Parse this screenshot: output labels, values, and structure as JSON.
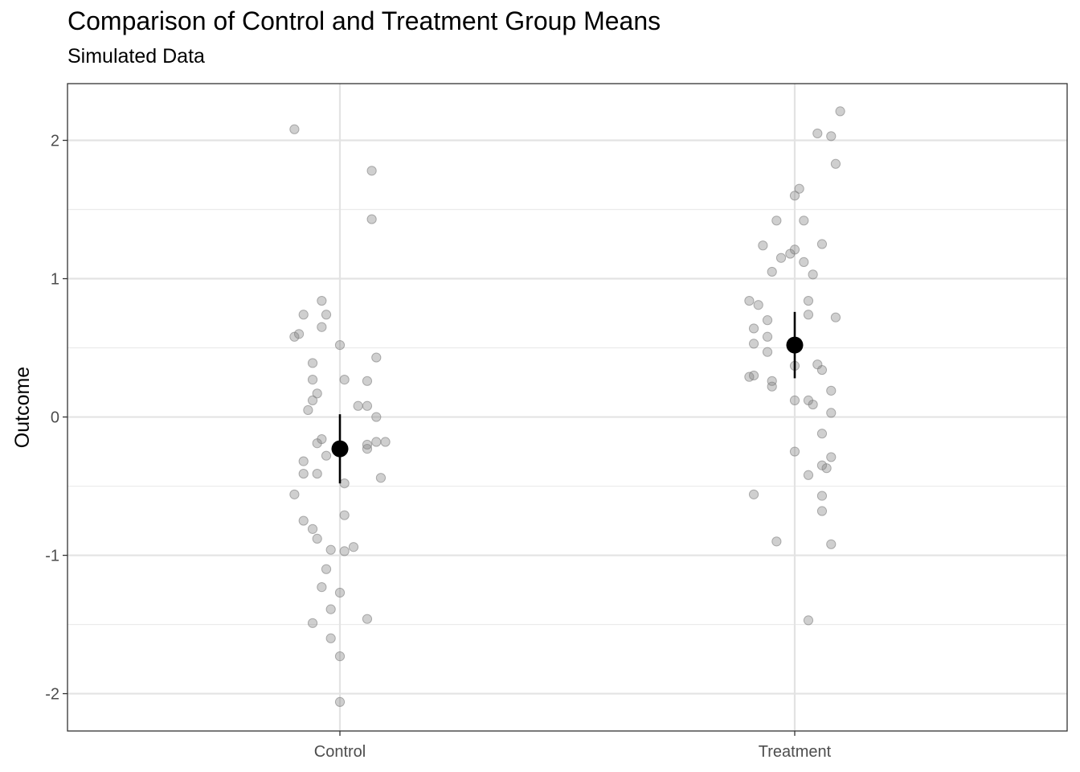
{
  "chart_data": {
    "type": "scatter",
    "title": "Comparison of Control and Treatment Group Means",
    "subtitle": "Simulated Data",
    "xlabel": "",
    "ylabel": "Outcome",
    "categories": [
      "Control",
      "Treatment"
    ],
    "ylim": [
      -2.27,
      2.41
    ],
    "y_ticks": [
      -2,
      -1,
      0,
      1,
      2
    ],
    "grid": true,
    "point_color": "#808080",
    "mean_color": "#000000",
    "means": [
      {
        "category": "Control",
        "mean": -0.23,
        "lower": -0.48,
        "upper": 0.02
      },
      {
        "category": "Treatment",
        "mean": 0.52,
        "lower": 0.28,
        "upper": 0.76
      }
    ],
    "points": [
      {
        "category": "Control",
        "jitter": -0.1,
        "y": 2.08
      },
      {
        "category": "Control",
        "jitter": 0.07,
        "y": 1.78
      },
      {
        "category": "Control",
        "jitter": 0.07,
        "y": 1.43
      },
      {
        "category": "Control",
        "jitter": -0.04,
        "y": 0.84
      },
      {
        "category": "Control",
        "jitter": -0.08,
        "y": 0.74
      },
      {
        "category": "Control",
        "jitter": -0.03,
        "y": 0.74
      },
      {
        "category": "Control",
        "jitter": -0.04,
        "y": 0.65
      },
      {
        "category": "Control",
        "jitter": -0.09,
        "y": 0.6
      },
      {
        "category": "Control",
        "jitter": -0.1,
        "y": 0.58
      },
      {
        "category": "Control",
        "jitter": 0.0,
        "y": 0.52
      },
      {
        "category": "Control",
        "jitter": 0.08,
        "y": 0.43
      },
      {
        "category": "Control",
        "jitter": -0.06,
        "y": 0.39
      },
      {
        "category": "Control",
        "jitter": -0.06,
        "y": 0.27
      },
      {
        "category": "Control",
        "jitter": 0.01,
        "y": 0.27
      },
      {
        "category": "Control",
        "jitter": 0.06,
        "y": 0.26
      },
      {
        "category": "Control",
        "jitter": -0.05,
        "y": 0.17
      },
      {
        "category": "Control",
        "jitter": -0.06,
        "y": 0.12
      },
      {
        "category": "Control",
        "jitter": 0.04,
        "y": 0.08
      },
      {
        "category": "Control",
        "jitter": 0.06,
        "y": 0.08
      },
      {
        "category": "Control",
        "jitter": -0.07,
        "y": 0.05
      },
      {
        "category": "Control",
        "jitter": 0.08,
        "y": 0.0
      },
      {
        "category": "Control",
        "jitter": -0.04,
        "y": -0.16
      },
      {
        "category": "Control",
        "jitter": 0.08,
        "y": -0.18
      },
      {
        "category": "Control",
        "jitter": 0.1,
        "y": -0.18
      },
      {
        "category": "Control",
        "jitter": -0.05,
        "y": -0.19
      },
      {
        "category": "Control",
        "jitter": 0.06,
        "y": -0.2
      },
      {
        "category": "Control",
        "jitter": 0.06,
        "y": -0.23
      },
      {
        "category": "Control",
        "jitter": -0.03,
        "y": -0.28
      },
      {
        "category": "Control",
        "jitter": -0.08,
        "y": -0.32
      },
      {
        "category": "Control",
        "jitter": -0.08,
        "y": -0.41
      },
      {
        "category": "Control",
        "jitter": -0.05,
        "y": -0.41
      },
      {
        "category": "Control",
        "jitter": 0.09,
        "y": -0.44
      },
      {
        "category": "Control",
        "jitter": 0.01,
        "y": -0.48
      },
      {
        "category": "Control",
        "jitter": -0.1,
        "y": -0.56
      },
      {
        "category": "Control",
        "jitter": 0.01,
        "y": -0.71
      },
      {
        "category": "Control",
        "jitter": -0.08,
        "y": -0.75
      },
      {
        "category": "Control",
        "jitter": -0.06,
        "y": -0.81
      },
      {
        "category": "Control",
        "jitter": -0.05,
        "y": -0.88
      },
      {
        "category": "Control",
        "jitter": 0.03,
        "y": -0.94
      },
      {
        "category": "Control",
        "jitter": -0.02,
        "y": -0.96
      },
      {
        "category": "Control",
        "jitter": 0.01,
        "y": -0.97
      },
      {
        "category": "Control",
        "jitter": -0.03,
        "y": -1.1
      },
      {
        "category": "Control",
        "jitter": -0.04,
        "y": -1.23
      },
      {
        "category": "Control",
        "jitter": 0.0,
        "y": -1.27
      },
      {
        "category": "Control",
        "jitter": -0.02,
        "y": -1.39
      },
      {
        "category": "Control",
        "jitter": 0.06,
        "y": -1.46
      },
      {
        "category": "Control",
        "jitter": -0.06,
        "y": -1.49
      },
      {
        "category": "Control",
        "jitter": -0.02,
        "y": -1.6
      },
      {
        "category": "Control",
        "jitter": 0.0,
        "y": -1.73
      },
      {
        "category": "Control",
        "jitter": 0.0,
        "y": -2.06
      },
      {
        "category": "Treatment",
        "jitter": 0.1,
        "y": 2.21
      },
      {
        "category": "Treatment",
        "jitter": 0.05,
        "y": 2.05
      },
      {
        "category": "Treatment",
        "jitter": 0.08,
        "y": 2.03
      },
      {
        "category": "Treatment",
        "jitter": 0.09,
        "y": 1.83
      },
      {
        "category": "Treatment",
        "jitter": 0.01,
        "y": 1.65
      },
      {
        "category": "Treatment",
        "jitter": 0.0,
        "y": 1.6
      },
      {
        "category": "Treatment",
        "jitter": -0.04,
        "y": 1.42
      },
      {
        "category": "Treatment",
        "jitter": 0.02,
        "y": 1.42
      },
      {
        "category": "Treatment",
        "jitter": -0.07,
        "y": 1.24
      },
      {
        "category": "Treatment",
        "jitter": 0.06,
        "y": 1.25
      },
      {
        "category": "Treatment",
        "jitter": 0.0,
        "y": 1.21
      },
      {
        "category": "Treatment",
        "jitter": -0.01,
        "y": 1.18
      },
      {
        "category": "Treatment",
        "jitter": -0.03,
        "y": 1.15
      },
      {
        "category": "Treatment",
        "jitter": 0.02,
        "y": 1.12
      },
      {
        "category": "Treatment",
        "jitter": -0.05,
        "y": 1.05
      },
      {
        "category": "Treatment",
        "jitter": 0.04,
        "y": 1.03
      },
      {
        "category": "Treatment",
        "jitter": -0.1,
        "y": 0.84
      },
      {
        "category": "Treatment",
        "jitter": 0.03,
        "y": 0.84
      },
      {
        "category": "Treatment",
        "jitter": -0.08,
        "y": 0.81
      },
      {
        "category": "Treatment",
        "jitter": 0.03,
        "y": 0.74
      },
      {
        "category": "Treatment",
        "jitter": 0.09,
        "y": 0.72
      },
      {
        "category": "Treatment",
        "jitter": -0.06,
        "y": 0.7
      },
      {
        "category": "Treatment",
        "jitter": -0.09,
        "y": 0.64
      },
      {
        "category": "Treatment",
        "jitter": -0.06,
        "y": 0.58
      },
      {
        "category": "Treatment",
        "jitter": -0.09,
        "y": 0.53
      },
      {
        "category": "Treatment",
        "jitter": -0.06,
        "y": 0.47
      },
      {
        "category": "Treatment",
        "jitter": 0.05,
        "y": 0.38
      },
      {
        "category": "Treatment",
        "jitter": 0.0,
        "y": 0.37
      },
      {
        "category": "Treatment",
        "jitter": 0.06,
        "y": 0.34
      },
      {
        "category": "Treatment",
        "jitter": -0.09,
        "y": 0.3
      },
      {
        "category": "Treatment",
        "jitter": -0.1,
        "y": 0.29
      },
      {
        "category": "Treatment",
        "jitter": -0.05,
        "y": 0.26
      },
      {
        "category": "Treatment",
        "jitter": -0.05,
        "y": 0.22
      },
      {
        "category": "Treatment",
        "jitter": 0.08,
        "y": 0.19
      },
      {
        "category": "Treatment",
        "jitter": 0.0,
        "y": 0.12
      },
      {
        "category": "Treatment",
        "jitter": 0.03,
        "y": 0.12
      },
      {
        "category": "Treatment",
        "jitter": 0.04,
        "y": 0.09
      },
      {
        "category": "Treatment",
        "jitter": 0.08,
        "y": 0.03
      },
      {
        "category": "Treatment",
        "jitter": 0.06,
        "y": -0.12
      },
      {
        "category": "Treatment",
        "jitter": 0.0,
        "y": -0.25
      },
      {
        "category": "Treatment",
        "jitter": 0.08,
        "y": -0.29
      },
      {
        "category": "Treatment",
        "jitter": 0.06,
        "y": -0.35
      },
      {
        "category": "Treatment",
        "jitter": 0.07,
        "y": -0.37
      },
      {
        "category": "Treatment",
        "jitter": 0.03,
        "y": -0.42
      },
      {
        "category": "Treatment",
        "jitter": -0.09,
        "y": -0.56
      },
      {
        "category": "Treatment",
        "jitter": 0.06,
        "y": -0.57
      },
      {
        "category": "Treatment",
        "jitter": 0.06,
        "y": -0.68
      },
      {
        "category": "Treatment",
        "jitter": -0.04,
        "y": -0.9
      },
      {
        "category": "Treatment",
        "jitter": 0.08,
        "y": -0.92
      },
      {
        "category": "Treatment",
        "jitter": 0.03,
        "y": -1.47
      }
    ]
  }
}
